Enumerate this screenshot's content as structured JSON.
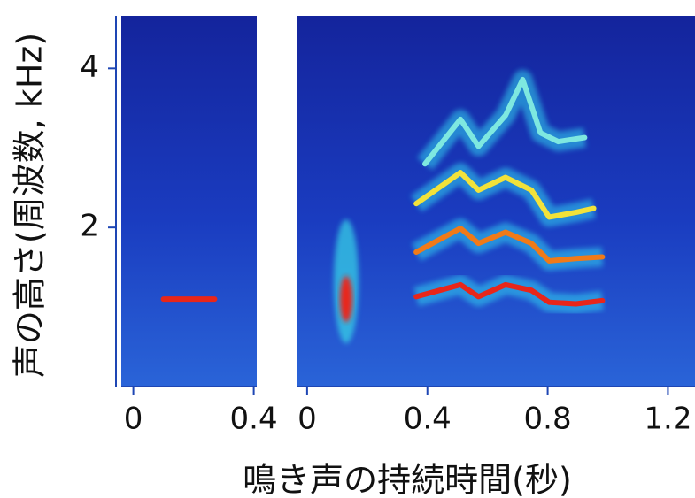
{
  "chart_data": [
    {
      "type": "spectrogram",
      "y_label": "声の高さ(周波数, kHz)",
      "ylim": [
        0,
        4.66
      ],
      "yticks": [
        2,
        4
      ],
      "xlim": [
        -0.04,
        0.41
      ],
      "xticks": [
        0,
        0.4
      ],
      "series": [
        {
          "color": "#e8261a",
          "x": [
            0.1,
            0.18,
            0.27
          ],
          "values": [
            1.1,
            1.1,
            1.1
          ]
        }
      ]
    },
    {
      "type": "spectrogram",
      "x_label": "鳴き声の持続時間(秒)",
      "ylim": [
        0,
        4.66
      ],
      "xlim": [
        -0.035,
        1.29
      ],
      "xticks": [
        0,
        0.4,
        0.8,
        1.2
      ],
      "series": [
        {
          "color": "#e8261a",
          "x": [
            0.13
          ],
          "values": [
            1.1
          ]
        },
        {
          "color": "#e8261a",
          "x": [
            0.363,
            0.51,
            0.57,
            0.66,
            0.746,
            0.805,
            0.894,
            0.982
          ],
          "values": [
            1.13,
            1.28,
            1.13,
            1.28,
            1.21,
            1.06,
            1.04,
            1.08
          ]
        },
        {
          "color": "#f07a18",
          "x": [
            0.363,
            0.51,
            0.57,
            0.66,
            0.746,
            0.805,
            0.894,
            0.982
          ],
          "values": [
            1.69,
            1.99,
            1.8,
            1.94,
            1.8,
            1.58,
            1.61,
            1.63
          ]
        },
        {
          "color": "#f2e23a",
          "x": [
            0.363,
            0.51,
            0.57,
            0.66,
            0.746,
            0.805,
            0.894,
            0.953
          ],
          "values": [
            2.3,
            2.69,
            2.47,
            2.63,
            2.47,
            2.13,
            2.19,
            2.24
          ]
        },
        {
          "color": "#7ee8e0",
          "x": [
            0.392,
            0.51,
            0.57,
            0.66,
            0.717,
            0.776,
            0.835,
            0.923
          ],
          "values": [
            2.8,
            3.36,
            3.02,
            3.41,
            3.86,
            3.19,
            3.08,
            3.13
          ]
        }
      ]
    }
  ]
}
